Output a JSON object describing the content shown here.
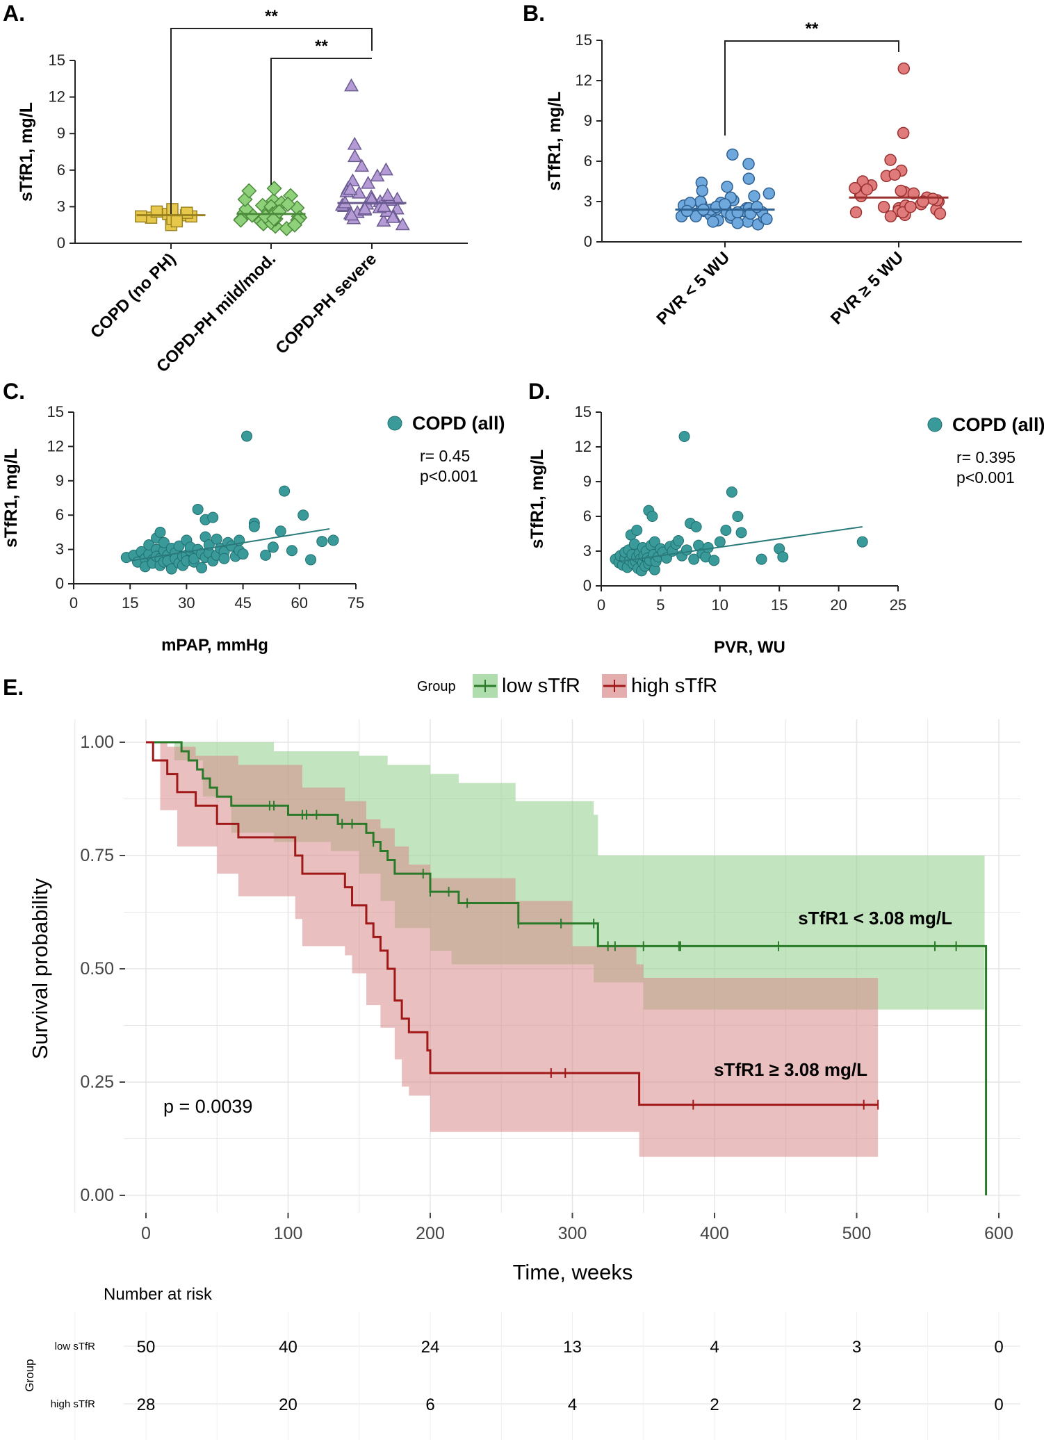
{
  "chart_data": [
    {
      "id": "A",
      "type": "scatter",
      "panel_label": "A.",
      "title": "",
      "ylabel": "sTfR1, mg/L",
      "xlabel": "",
      "ylim": [
        0,
        15
      ],
      "yticks": [
        0,
        3,
        6,
        9,
        12,
        15
      ],
      "categories": [
        "COPD (no PH)",
        "COPD-PH mild/mod.",
        "COPD-PH severe"
      ],
      "colors": [
        "#e8c84a",
        "#8fd07a",
        "#b49bd6"
      ],
      "strokes": [
        "#9a8220",
        "#4a8a3a",
        "#6a5a90"
      ],
      "shapes": [
        "square",
        "diamond",
        "triangle"
      ],
      "medians": [
        2.3,
        2.4,
        3.3
      ],
      "series": [
        {
          "name": "COPD (no PH)",
          "values": [
            2.1,
            2.3,
            1.9,
            2.4,
            2.6,
            2.2,
            2.5,
            1.5,
            2.0,
            2.8,
            2.2,
            1.8
          ]
        },
        {
          "name": "COPD-PH mild/mod.",
          "values": [
            2.0,
            2.5,
            3.1,
            1.8,
            2.2,
            3.5,
            1.4,
            2.7,
            2.0,
            4.5,
            1.6,
            2.9,
            3.9,
            2.3,
            1.2,
            3.3,
            2.1,
            2.6,
            1.9,
            3.0,
            2.4,
            1.7,
            2.8,
            3.6,
            2.2,
            1.5,
            2.5,
            4.3,
            2.0,
            3.2,
            1.9,
            2.6
          ]
        },
        {
          "name": "COPD-PH severe",
          "values": [
            2.5,
            3.2,
            4.1,
            2.8,
            5.5,
            3.6,
            1.8,
            4.5,
            2.2,
            3.0,
            6.3,
            2.6,
            3.4,
            8.1,
            12.9,
            2.0,
            3.8,
            4.9,
            2.4,
            3.1,
            7.1,
            2.9,
            3.5,
            5.1,
            2.3,
            4.2,
            1.5,
            3.3,
            6.0,
            2.7,
            3.9,
            2.1,
            3.6,
            4.4,
            2.8,
            3.0
          ]
        }
      ],
      "significance": [
        {
          "from": "COPD (no PH)",
          "to": "COPD-PH severe",
          "label": "**"
        },
        {
          "from": "COPD-PH mild/mod.",
          "to": "COPD-PH severe",
          "label": "**"
        }
      ]
    },
    {
      "id": "B",
      "type": "scatter",
      "panel_label": "B.",
      "title": "",
      "ylabel": "sTfR1, mg/L",
      "xlabel": "",
      "ylim": [
        0,
        15
      ],
      "yticks": [
        0,
        3,
        6,
        9,
        12,
        15
      ],
      "categories": [
        "PVR < 5 WU",
        "PVR ≥ 5 WU"
      ],
      "colors": [
        "#6fa8dc",
        "#e07b7b"
      ],
      "strokes": [
        "#2e5f91",
        "#9a3030"
      ],
      "shapes": [
        "circle",
        "circle"
      ],
      "medians": [
        2.4,
        3.3
      ],
      "series": [
        {
          "name": "PVR < 5 WU",
          "values": [
            2.1,
            2.5,
            1.8,
            2.9,
            2.3,
            3.4,
            1.5,
            2.6,
            4.1,
            2.2,
            1.9,
            3.1,
            6.5,
            2.4,
            5.8,
            2.0,
            1.6,
            2.8,
            3.6,
            2.3,
            1.3,
            4.7,
            2.7,
            2.1,
            1.8,
            3.0,
            2.5,
            4.4,
            2.2,
            1.9,
            2.4,
            3.3,
            1.5,
            2.6,
            2.0,
            2.9,
            2.2,
            1.7,
            3.8,
            2.4,
            2.1,
            2.6,
            1.4,
            2.3,
            2.8
          ]
        },
        {
          "name": "PVR ≥ 5 WU",
          "values": [
            2.2,
            3.5,
            4.9,
            2.6,
            3.0,
            5.3,
            2.0,
            3.7,
            12.9,
            8.1,
            6.1,
            2.4,
            3.3,
            4.2,
            2.8,
            3.6,
            2.1,
            5.0,
            3.1,
            2.5,
            3.8,
            2.3,
            4.5,
            3.4,
            1.9,
            3.2,
            2.7,
            3.9,
            2.2,
            3.0,
            4.0,
            2.6
          ]
        }
      ],
      "significance": [
        {
          "from": "PVR < 5 WU",
          "to": "PVR ≥ 5 WU",
          "label": "**"
        }
      ]
    },
    {
      "id": "C",
      "type": "scatter",
      "panel_label": "C.",
      "title": "",
      "xlabel": "mPAP, mmHg",
      "ylabel": "sTfR1, mg/L",
      "xlim": [
        0,
        75
      ],
      "ylim": [
        0,
        15
      ],
      "xticks": [
        0,
        15,
        30,
        45,
        60,
        75
      ],
      "yticks": [
        0,
        3,
        6,
        9,
        12,
        15
      ],
      "color": "#3a9a9a",
      "legend": "COPD (all)",
      "annotation": [
        "r= 0.45",
        "p<0.001"
      ],
      "trend": {
        "x": [
          15,
          68
        ],
        "y": [
          2.0,
          4.8
        ]
      },
      "x": [
        14,
        16,
        17,
        18,
        19,
        19,
        20,
        20,
        21,
        21,
        22,
        22,
        22,
        23,
        23,
        23,
        24,
        24,
        24,
        25,
        25,
        26,
        26,
        27,
        27,
        28,
        28,
        29,
        29,
        30,
        30,
        30,
        31,
        31,
        32,
        32,
        33,
        33,
        34,
        34,
        35,
        35,
        35,
        36,
        36,
        37,
        37,
        38,
        38,
        39,
        40,
        40,
        41,
        42,
        43,
        44,
        44,
        45,
        46,
        48,
        48,
        51,
        53,
        55,
        56,
        58,
        61,
        63,
        66,
        69
      ],
      "y": [
        2.3,
        2.5,
        1.9,
        2.8,
        2.2,
        1.5,
        2.6,
        3.4,
        2.1,
        1.8,
        4.0,
        3.0,
        2.4,
        2.2,
        4.5,
        1.6,
        2.9,
        3.6,
        1.9,
        2.5,
        2.0,
        3.1,
        1.3,
        2.7,
        2.2,
        1.8,
        3.3,
        2.4,
        1.6,
        3.8,
        2.5,
        2.0,
        2.9,
        3.2,
        1.9,
        2.2,
        6.5,
        3.0,
        2.6,
        1.4,
        2.3,
        5.6,
        4.1,
        2.7,
        3.4,
        2.0,
        5.8,
        2.5,
        3.9,
        3.1,
        2.8,
        2.2,
        3.6,
        3.3,
        2.4,
        2.9,
        3.8,
        2.6,
        12.9,
        5.3,
        5.0,
        2.5,
        3.2,
        4.6,
        8.1,
        2.9,
        6.0,
        2.1,
        3.7,
        3.8
      ]
    },
    {
      "id": "D",
      "type": "scatter",
      "panel_label": "D.",
      "title": "",
      "xlabel": "PVR, WU",
      "ylabel": "sTfR1, mg/L",
      "xlim": [
        0,
        25
      ],
      "ylim": [
        0,
        15
      ],
      "xticks": [
        0,
        5,
        10,
        15,
        20,
        25
      ],
      "yticks": [
        0,
        3,
        6,
        9,
        12,
        15
      ],
      "color": "#3a9a9a",
      "legend": "COPD (all)",
      "annotation": [
        "r= 0.395",
        "p<0.001"
      ],
      "trend": {
        "x": [
          1.5,
          22
        ],
        "y": [
          2.1,
          5.1
        ]
      },
      "x": [
        1.2,
        1.5,
        1.6,
        1.8,
        2.0,
        2.0,
        2.2,
        2.3,
        2.4,
        2.5,
        2.6,
        2.7,
        2.8,
        2.9,
        3.0,
        3.0,
        3.1,
        3.2,
        3.3,
        3.4,
        3.5,
        3.5,
        3.6,
        3.7,
        3.8,
        3.9,
        4.0,
        4.0,
        4.1,
        4.2,
        4.3,
        4.4,
        4.5,
        4.5,
        4.6,
        4.8,
        5.0,
        5.2,
        5.5,
        5.8,
        6.0,
        6.3,
        6.5,
        6.8,
        7.0,
        7.2,
        7.5,
        7.8,
        8.0,
        8.2,
        8.5,
        8.8,
        9.0,
        9.5,
        10.0,
        10.5,
        11.0,
        11.5,
        11.8,
        13.5,
        15.0,
        15.3,
        22.0
      ],
      "y": [
        2.3,
        2.0,
        2.6,
        1.8,
        2.4,
        2.9,
        1.6,
        3.1,
        2.2,
        4.4,
        2.7,
        1.9,
        3.6,
        2.1,
        2.5,
        4.8,
        1.5,
        2.8,
        2.3,
        1.3,
        3.3,
        2.0,
        2.6,
        1.7,
        3.0,
        2.4,
        6.5,
        1.9,
        2.2,
        3.5,
        6.0,
        2.7,
        1.4,
        3.8,
        2.1,
        2.5,
        3.2,
        2.9,
        2.4,
        3.4,
        3.0,
        3.6,
        3.9,
        2.6,
        12.9,
        3.1,
        5.4,
        2.3,
        5.1,
        3.5,
        2.8,
        2.5,
        3.3,
        2.2,
        3.8,
        4.8,
        8.1,
        6.0,
        4.6,
        2.3,
        3.2,
        2.5,
        3.8
      ]
    },
    {
      "id": "E",
      "type": "line",
      "subtype": "kaplan-meier",
      "panel_label": "E.",
      "title": "",
      "xlabel": "Time, weeks",
      "ylabel": "Survival probability",
      "xlim": [
        0,
        600
      ],
      "ylim": [
        0,
        1
      ],
      "xticks": [
        0,
        100,
        200,
        300,
        400,
        500,
        600
      ],
      "yticks": [
        "0.00",
        "0.25",
        "0.50",
        "0.75",
        "1.00"
      ],
      "legend_title": "Group",
      "pvalue": "p = 0.0039",
      "series": [
        {
          "name": "low sTfR",
          "label": "sTfR1 < 3.08 mg/L",
          "color": "#2a7a2a",
          "band": "#8fcf8a",
          "steps": [
            [
              0,
              1.0
            ],
            [
              20,
              1.0
            ],
            [
              25,
              0.98
            ],
            [
              30,
              0.96
            ],
            [
              36,
              0.94
            ],
            [
              40,
              0.92
            ],
            [
              45,
              0.9
            ],
            [
              50,
              0.88
            ],
            [
              60,
              0.86
            ],
            [
              90,
              0.86
            ],
            [
              100,
              0.84
            ],
            [
              130,
              0.84
            ],
            [
              135,
              0.82
            ],
            [
              150,
              0.82
            ],
            [
              155,
              0.8
            ],
            [
              160,
              0.78
            ],
            [
              165,
              0.76
            ],
            [
              170,
              0.74
            ],
            [
              175,
              0.71
            ],
            [
              195,
              0.71
            ],
            [
              200,
              0.67
            ],
            [
              215,
              0.67
            ],
            [
              220,
              0.645
            ],
            [
              260,
              0.645
            ],
            [
              262,
              0.6
            ],
            [
              315,
              0.6
            ],
            [
              318,
              0.55
            ],
            [
              590,
              0.55
            ],
            [
              591,
              0.0
            ]
          ],
          "upper": [
            [
              0,
              1.0
            ],
            [
              60,
              1.0
            ],
            [
              90,
              0.98
            ],
            [
              150,
              0.97
            ],
            [
              170,
              0.95
            ],
            [
              200,
              0.93
            ],
            [
              220,
              0.91
            ],
            [
              260,
              0.87
            ],
            [
              315,
              0.84
            ],
            [
              318,
              0.75
            ],
            [
              590,
              0.75
            ]
          ],
          "lower": [
            [
              0,
              1.0
            ],
            [
              20,
              0.96
            ],
            [
              40,
              0.88
            ],
            [
              60,
              0.8
            ],
            [
              90,
              0.78
            ],
            [
              130,
              0.76
            ],
            [
              150,
              0.71
            ],
            [
              165,
              0.65
            ],
            [
              175,
              0.59
            ],
            [
              200,
              0.54
            ],
            [
              215,
              0.51
            ],
            [
              260,
              0.51
            ],
            [
              315,
              0.47
            ],
            [
              350,
              0.41
            ],
            [
              590,
              0.41
            ]
          ],
          "censor": [
            87,
            90,
            110,
            113,
            120,
            138,
            145,
            160,
            195,
            200,
            213,
            226,
            262,
            292,
            315,
            325,
            330,
            350,
            375,
            376,
            445,
            555,
            570
          ]
        },
        {
          "name": "high sTfR",
          "label": "sTfR1 ≥ 3.08 mg/L",
          "color": "#a01818",
          "band": "#d98b8b",
          "steps": [
            [
              0,
              1.0
            ],
            [
              5,
              0.96
            ],
            [
              15,
              0.93
            ],
            [
              22,
              0.89
            ],
            [
              35,
              0.86
            ],
            [
              50,
              0.82
            ],
            [
              65,
              0.79
            ],
            [
              100,
              0.79
            ],
            [
              105,
              0.75
            ],
            [
              110,
              0.71
            ],
            [
              135,
              0.71
            ],
            [
              140,
              0.68
            ],
            [
              145,
              0.64
            ],
            [
              155,
              0.6
            ],
            [
              160,
              0.57
            ],
            [
              165,
              0.54
            ],
            [
              170,
              0.5
            ],
            [
              175,
              0.43
            ],
            [
              180,
              0.39
            ],
            [
              185,
              0.36
            ],
            [
              195,
              0.36
            ],
            [
              198,
              0.32
            ],
            [
              200,
              0.27
            ],
            [
              345,
              0.27
            ],
            [
              347,
              0.2
            ],
            [
              515,
              0.2
            ]
          ],
          "upper": [
            [
              0,
              1.0
            ],
            [
              15,
              0.99
            ],
            [
              35,
              0.97
            ],
            [
              65,
              0.95
            ],
            [
              110,
              0.9
            ],
            [
              140,
              0.87
            ],
            [
              155,
              0.83
            ],
            [
              165,
              0.81
            ],
            [
              175,
              0.77
            ],
            [
              185,
              0.73
            ],
            [
              200,
              0.7
            ],
            [
              215,
              0.7
            ],
            [
              260,
              0.65
            ],
            [
              300,
              0.55
            ],
            [
              345,
              0.51
            ],
            [
              350,
              0.48
            ],
            [
              515,
              0.48
            ]
          ],
          "lower": [
            [
              0,
              1.0
            ],
            [
              10,
              0.85
            ],
            [
              22,
              0.77
            ],
            [
              50,
              0.71
            ],
            [
              65,
              0.66
            ],
            [
              105,
              0.61
            ],
            [
              110,
              0.55
            ],
            [
              140,
              0.53
            ],
            [
              145,
              0.49
            ],
            [
              155,
              0.42
            ],
            [
              165,
              0.37
            ],
            [
              175,
              0.3
            ],
            [
              180,
              0.24
            ],
            [
              185,
              0.22
            ],
            [
              200,
              0.14
            ],
            [
              345,
              0.14
            ],
            [
              347,
              0.085
            ],
            [
              515,
              0.085
            ]
          ],
          "censor": [
            285,
            295,
            385,
            505,
            515
          ]
        }
      ],
      "risk_table": {
        "title": "Number at risk",
        "row_title": "Group",
        "times": [
          0,
          100,
          200,
          300,
          400,
          500,
          600
        ],
        "rows": [
          {
            "name": "low sTfR",
            "color": "#2a7a2a",
            "counts": [
              50,
              40,
              24,
              13,
              4,
              3,
              0
            ]
          },
          {
            "name": "high sTfR",
            "color": "#a01818",
            "counts": [
              28,
              20,
              6,
              4,
              2,
              2,
              0
            ]
          }
        ]
      }
    }
  ]
}
